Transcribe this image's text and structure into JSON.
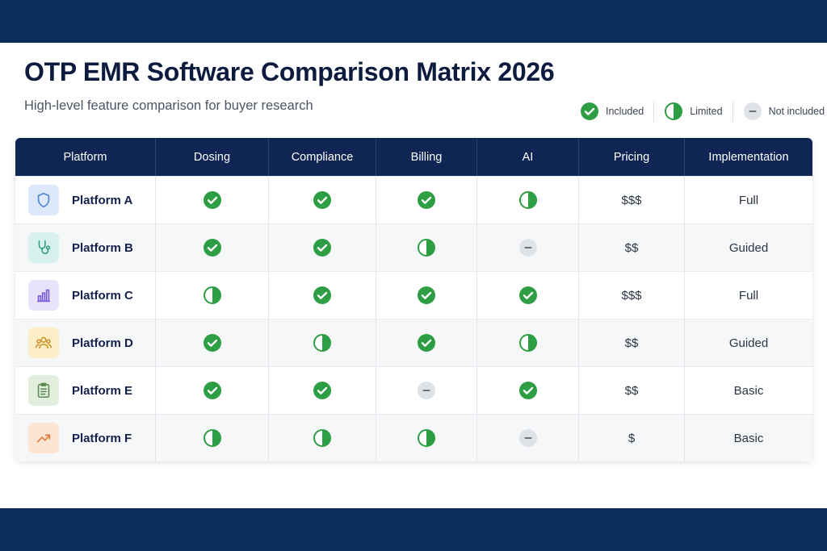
{
  "header": {
    "title": "OTP EMR Software Comparison Matrix 2026",
    "subtitle": "High-level feature comparison for buyer research"
  },
  "legend": {
    "included": "Included",
    "limited": "Limited",
    "not_included": "Not included"
  },
  "colors": {
    "band": "#0c2d5c",
    "table_header": "#0f2553",
    "included": "#2e9e44",
    "not_included": "#cfd3d8"
  },
  "table": {
    "columns": [
      "Platform",
      "Dosing",
      "Compliance",
      "Billing",
      "AI",
      "Pricing",
      "Implementation"
    ],
    "rows": [
      {
        "name": "Platform A",
        "icon": "shield-icon",
        "dosing": "included",
        "compliance": "included",
        "billing": "included",
        "ai": "limited",
        "pricing": "$$$",
        "implementation": "Full"
      },
      {
        "name": "Platform B",
        "icon": "stethoscope-icon",
        "dosing": "included",
        "compliance": "included",
        "billing": "limited",
        "ai": "not_included",
        "pricing": "$$",
        "implementation": "Guided"
      },
      {
        "name": "Platform C",
        "icon": "bar-chart-icon",
        "dosing": "limited",
        "compliance": "included",
        "billing": "included",
        "ai": "included",
        "pricing": "$$$",
        "implementation": "Full"
      },
      {
        "name": "Platform D",
        "icon": "users-icon",
        "dosing": "included",
        "compliance": "limited",
        "billing": "included",
        "ai": "limited",
        "pricing": "$$",
        "implementation": "Guided"
      },
      {
        "name": "Platform E",
        "icon": "clipboard-icon",
        "dosing": "included",
        "compliance": "included",
        "billing": "not_included",
        "ai": "included",
        "pricing": "$$",
        "implementation": "Basic"
      },
      {
        "name": "Platform F",
        "icon": "trend-up-icon",
        "dosing": "limited",
        "compliance": "limited",
        "billing": "limited",
        "ai": "not_included",
        "pricing": "$",
        "implementation": "Basic"
      }
    ]
  }
}
